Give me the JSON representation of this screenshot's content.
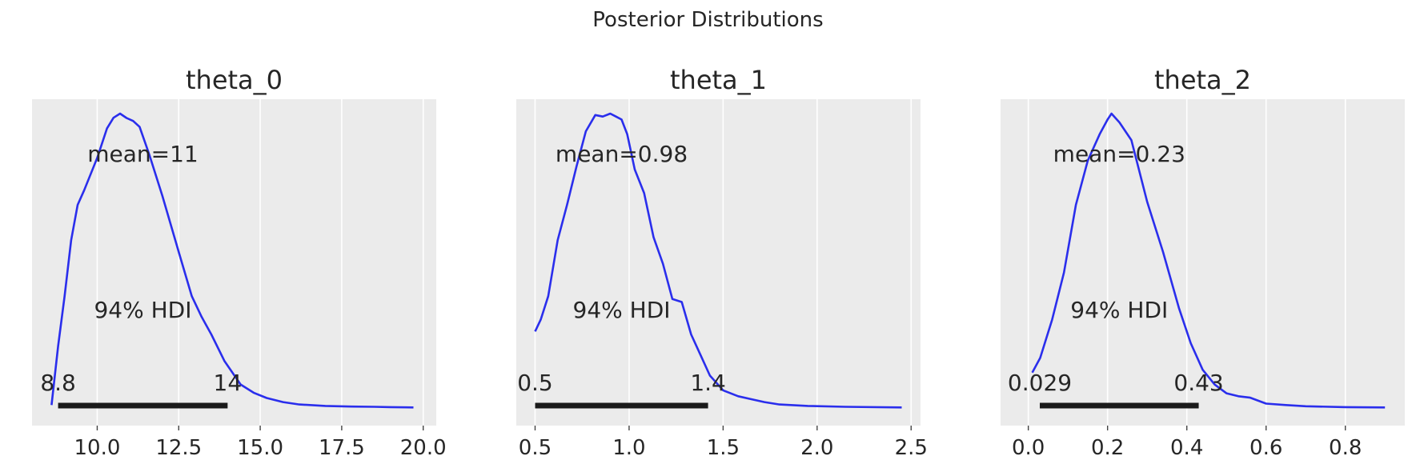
{
  "figure_title": "Posterior Distributions",
  "colors": {
    "panel_bg": "#EBEBEB",
    "grid": "#FFFFFF",
    "line": "#2A2EEC",
    "hdi_bar": "#1A1A1A",
    "text": "#262626"
  },
  "chart_data": [
    {
      "type": "area",
      "title": "theta_0",
      "xlim": [
        8.0,
        20.4
      ],
      "xticks": [
        10.0,
        12.5,
        15.0,
        17.5,
        20.0
      ],
      "xtick_labels": [
        "10.0",
        "12.5",
        "15.0",
        "17.5",
        "20.0"
      ],
      "grid": true,
      "mean_label": "mean=11",
      "hdi_label": "94% HDI",
      "hdi": [
        8.8,
        14.0
      ],
      "hdi_labels": [
        "8.8",
        "14"
      ],
      "kde": {
        "x": [
          8.6,
          8.8,
          9.0,
          9.2,
          9.4,
          9.6,
          10.0,
          10.3,
          10.5,
          10.7,
          10.9,
          11.1,
          11.3,
          11.6,
          12.0,
          12.5,
          12.9,
          13.2,
          13.5,
          13.9,
          14.4,
          14.8,
          15.2,
          15.7,
          16.2,
          17.0,
          17.8,
          18.5,
          19.0,
          19.7
        ],
        "density": [
          0.01,
          0.21,
          0.38,
          0.57,
          0.69,
          0.74,
          0.85,
          0.95,
          0.986,
          1.0,
          0.985,
          0.975,
          0.955,
          0.86,
          0.72,
          0.53,
          0.38,
          0.31,
          0.25,
          0.16,
          0.08,
          0.052,
          0.034,
          0.02,
          0.012,
          0.007,
          0.005,
          0.004,
          0.003,
          0.002
        ]
      }
    },
    {
      "type": "area",
      "title": "theta_1",
      "xlim": [
        0.4,
        2.55
      ],
      "xticks": [
        0.5,
        1.0,
        1.5,
        2.0,
        2.5
      ],
      "xtick_labels": [
        "0.5",
        "1.0",
        "1.5",
        "2.0",
        "2.5"
      ],
      "grid": true,
      "mean_label": "mean=0.98",
      "hdi_label": "94% HDI",
      "hdi": [
        0.5,
        1.42
      ],
      "hdi_labels": [
        "0.5",
        "1.4"
      ],
      "kde": {
        "x": [
          0.5,
          0.53,
          0.57,
          0.62,
          0.67,
          0.72,
          0.77,
          0.82,
          0.86,
          0.9,
          0.93,
          0.96,
          0.99,
          1.03,
          1.08,
          1.13,
          1.18,
          1.23,
          1.28,
          1.33,
          1.38,
          1.43,
          1.5,
          1.58,
          1.65,
          1.72,
          1.8,
          1.95,
          2.15,
          2.45
        ],
        "density": [
          0.26,
          0.3,
          0.38,
          0.57,
          0.69,
          0.82,
          0.94,
          0.995,
          0.99,
          1.0,
          0.99,
          0.98,
          0.93,
          0.81,
          0.73,
          0.58,
          0.49,
          0.37,
          0.36,
          0.25,
          0.18,
          0.11,
          0.06,
          0.04,
          0.03,
          0.02,
          0.012,
          0.007,
          0.004,
          0.002
        ]
      }
    },
    {
      "type": "area",
      "title": "theta_2",
      "xlim": [
        -0.07,
        0.95
      ],
      "xticks": [
        0.0,
        0.2,
        0.4,
        0.6,
        0.8
      ],
      "xtick_labels": [
        "0.0",
        "0.2",
        "0.4",
        "0.6",
        "0.8"
      ],
      "grid": true,
      "mean_label": "mean=0.23",
      "hdi_label": "94% HDI",
      "hdi": [
        0.029,
        0.43
      ],
      "hdi_labels": [
        "0.029",
        "0.43"
      ],
      "kde": {
        "x": [
          0.01,
          0.03,
          0.06,
          0.09,
          0.12,
          0.15,
          0.18,
          0.2,
          0.21,
          0.23,
          0.26,
          0.3,
          0.34,
          0.38,
          0.41,
          0.44,
          0.47,
          0.5,
          0.53,
          0.56,
          0.6,
          0.65,
          0.7,
          0.8,
          0.9
        ],
        "density": [
          0.12,
          0.17,
          0.3,
          0.46,
          0.69,
          0.84,
          0.93,
          0.98,
          1.0,
          0.97,
          0.91,
          0.7,
          0.53,
          0.34,
          0.22,
          0.13,
          0.08,
          0.05,
          0.04,
          0.035,
          0.015,
          0.01,
          0.006,
          0.003,
          0.002
        ]
      }
    }
  ]
}
